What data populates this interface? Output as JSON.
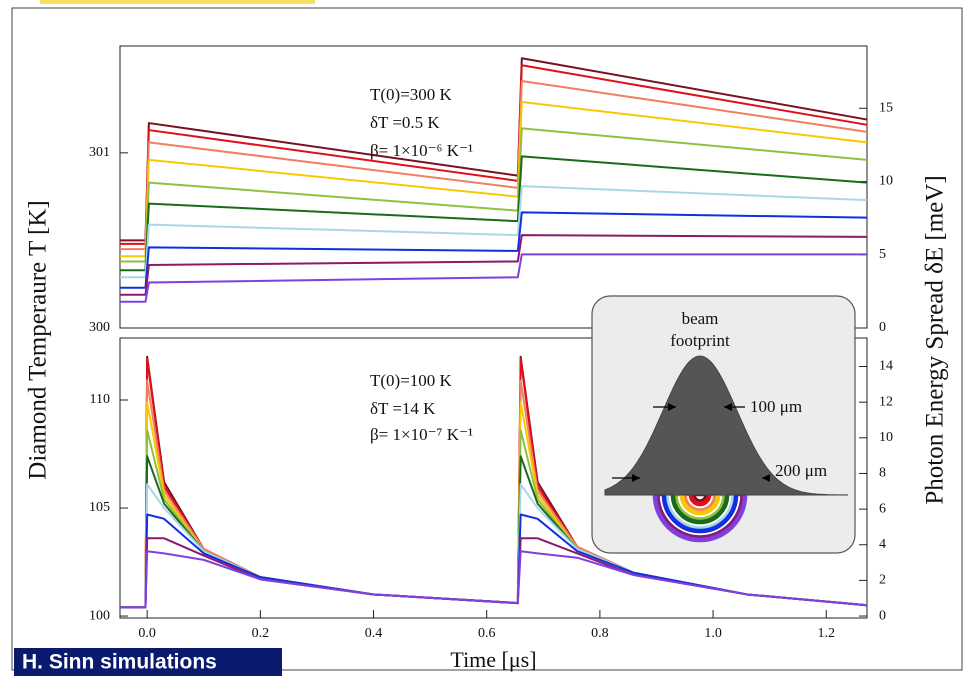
{
  "figure": {
    "ylabel": "Diamond Temperaure  T  [K]",
    "y2label": "Photon Energy Spread  δE  [meV]",
    "credit": "H. Sinn simulations"
  },
  "inset": {
    "label_lines": [
      "beam",
      "footprint"
    ],
    "inner_width": "100 μm",
    "outer_width": "200 μm"
  },
  "chart_data": [
    {
      "type": "line",
      "annotations": [
        "T(0)=300 K",
        "δT =0.5 K",
        "β= 1×10⁻⁶ K⁻¹"
      ],
      "x": [
        -0.048,
        -0.003,
        0.003,
        0.655,
        0.662,
        1.272
      ],
      "xlim": [
        -0.048,
        1.272
      ],
      "ylim": [
        300,
        301.61
      ],
      "yticks": [
        300,
        301
      ],
      "y2lim": [
        0,
        19.25
      ],
      "y2ticks": [
        0,
        5,
        10,
        15
      ],
      "series": [
        {
          "color": "#7a1020",
          "values": [
            300.5,
            300.5,
            301.17,
            300.87,
            301.54,
            301.19
          ]
        },
        {
          "color": "#e0101a",
          "values": [
            300.48,
            300.48,
            301.13,
            300.84,
            301.5,
            301.16
          ]
        },
        {
          "color": "#f08060",
          "values": [
            300.45,
            300.45,
            301.06,
            300.8,
            301.41,
            301.12
          ]
        },
        {
          "color": "#f8c800",
          "values": [
            300.41,
            300.41,
            300.96,
            300.75,
            301.29,
            301.06
          ]
        },
        {
          "color": "#90c040",
          "values": [
            300.38,
            300.38,
            300.83,
            300.67,
            301.14,
            300.96
          ]
        },
        {
          "color": "#1a6a1a",
          "values": [
            300.33,
            300.33,
            300.71,
            300.61,
            300.98,
            300.83
          ]
        },
        {
          "color": "#a8d8e8",
          "values": [
            300.29,
            300.29,
            300.59,
            300.53,
            300.81,
            300.73
          ]
        },
        {
          "color": "#1030e0",
          "values": [
            300.23,
            300.23,
            300.46,
            300.44,
            300.66,
            300.63
          ]
        },
        {
          "color": "#8a1a70",
          "values": [
            300.19,
            300.19,
            300.36,
            300.38,
            300.53,
            300.52
          ]
        },
        {
          "color": "#8040e0",
          "values": [
            300.15,
            300.15,
            300.26,
            300.29,
            300.42,
            300.42
          ]
        }
      ]
    },
    {
      "type": "line",
      "xlabel": "Time [μs]",
      "annotations": [
        "T(0)=100 K",
        "δT =14 K",
        "β= 1×10⁻⁷ K⁻¹"
      ],
      "x": [
        -0.048,
        -0.003,
        0.0,
        0.03,
        0.1,
        0.2,
        0.4,
        0.655,
        0.66,
        0.69,
        0.76,
        0.86,
        1.06,
        1.272
      ],
      "xlim": [
        -0.048,
        1.272
      ],
      "xticks": [
        {
          "value": 0,
          "label": "0.0"
        },
        0.2,
        0.4,
        0.6,
        0.8,
        {
          "value": 1,
          "label": "1.0"
        },
        1.2
      ],
      "ylim": [
        99.91,
        112.87
      ],
      "yticks": [
        100,
        105,
        110
      ],
      "y2lim": [
        -0.11,
        15.6
      ],
      "y2ticks": [
        0,
        2,
        4,
        6,
        8,
        10,
        12,
        14
      ],
      "series": [
        {
          "color": "#7a1020",
          "values": [
            100.4,
            100.4,
            112.0,
            106.2,
            103.1,
            101.8,
            101.0,
            100.6,
            112.0,
            106.2,
            103.2,
            102.0,
            101.0,
            100.5
          ]
        },
        {
          "color": "#e0101a",
          "values": [
            100.4,
            100.4,
            111.9,
            106.0,
            103.1,
            101.8,
            101.0,
            100.6,
            111.9,
            106.0,
            103.2,
            102.0,
            101.0,
            100.5
          ]
        },
        {
          "color": "#f08060",
          "values": [
            100.4,
            100.4,
            110.9,
            105.8,
            103.1,
            101.8,
            101.0,
            100.6,
            110.9,
            105.8,
            103.2,
            102.0,
            101.0,
            100.5
          ]
        },
        {
          "color": "#f8c800",
          "values": [
            100.4,
            100.4,
            109.9,
            105.6,
            103.0,
            101.8,
            101.0,
            100.6,
            109.9,
            105.6,
            103.1,
            102.0,
            101.0,
            100.5
          ]
        },
        {
          "color": "#90c040",
          "values": [
            100.4,
            100.4,
            108.6,
            105.4,
            103.0,
            101.8,
            101.0,
            100.6,
            108.6,
            105.4,
            103.1,
            102.0,
            101.0,
            100.5
          ]
        },
        {
          "color": "#1a6a1a",
          "values": [
            100.4,
            100.4,
            107.4,
            105.2,
            103.0,
            101.8,
            101.0,
            100.6,
            107.4,
            105.2,
            103.1,
            102.0,
            101.0,
            100.5
          ]
        },
        {
          "color": "#a8d8e8",
          "values": [
            100.4,
            100.4,
            106.1,
            105.0,
            103.0,
            101.8,
            101.0,
            100.6,
            106.1,
            105.0,
            103.1,
            102.0,
            101.0,
            100.5
          ]
        },
        {
          "color": "#1030e0",
          "values": [
            100.4,
            100.4,
            104.7,
            104.5,
            102.9,
            101.8,
            101.0,
            100.6,
            104.7,
            104.5,
            103.0,
            102.0,
            101.0,
            100.5
          ]
        },
        {
          "color": "#8a1a70",
          "values": [
            100.4,
            100.4,
            103.6,
            103.6,
            102.8,
            101.7,
            101.0,
            100.6,
            103.6,
            103.6,
            102.9,
            101.9,
            101.0,
            100.5
          ]
        },
        {
          "color": "#8040e0",
          "values": [
            100.4,
            100.4,
            103.0,
            102.9,
            102.6,
            101.7,
            101.0,
            100.6,
            103.0,
            102.9,
            102.7,
            101.9,
            101.0,
            100.5
          ]
        }
      ]
    }
  ]
}
